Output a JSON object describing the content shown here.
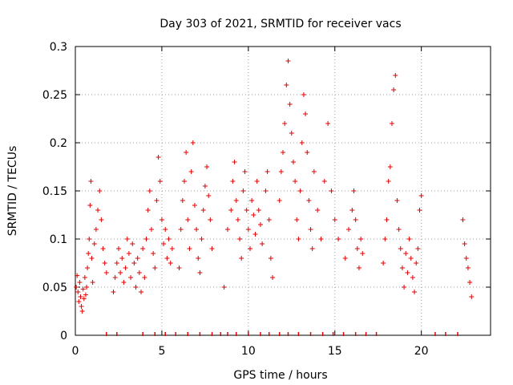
{
  "chart_data": {
    "type": "scatter",
    "title": "Day 303 of 2021, SRMTID for receiver vacs",
    "xlabel": "GPS time / hours",
    "ylabel": "SRMTID / TECUs",
    "xlim": [
      0,
      24
    ],
    "ylim": [
      0,
      0.3
    ],
    "xticks": [
      0,
      5,
      10,
      15,
      20
    ],
    "xtick_labels": [
      "0",
      "5",
      "10",
      "15",
      "20"
    ],
    "yticks": [
      0,
      0.05,
      0.1,
      0.15,
      0.2,
      0.25,
      0.3
    ],
    "ytick_labels": [
      "0",
      "0.05",
      "0.1",
      "0.15",
      "0.2",
      "0.25",
      "0.3"
    ],
    "grid": true,
    "marker": "+",
    "series": [
      {
        "name": "SRMTID",
        "color": "#e00000",
        "points": [
          [
            0.05,
            0.05
          ],
          [
            0.1,
            0.062
          ],
          [
            0.15,
            0.045
          ],
          [
            0.2,
            0.035
          ],
          [
            0.25,
            0.055
          ],
          [
            0.3,
            0.04
          ],
          [
            0.35,
            0.03
          ],
          [
            0.4,
            0.025
          ],
          [
            0.45,
            0.048
          ],
          [
            0.5,
            0.038
          ],
          [
            0.55,
            0.06
          ],
          [
            0.6,
            0.042
          ],
          [
            0.65,
            0.05
          ],
          [
            0.7,
            0.07
          ],
          [
            0.75,
            0.085
          ],
          [
            0.8,
            0.1
          ],
          [
            0.85,
            0.135
          ],
          [
            0.9,
            0.16
          ],
          [
            0.95,
            0.08
          ],
          [
            1.0,
            0.055
          ],
          [
            1.1,
            0.095
          ],
          [
            1.2,
            0.11
          ],
          [
            1.3,
            0.13
          ],
          [
            1.4,
            0.15
          ],
          [
            1.5,
            0.12
          ],
          [
            1.6,
            0.09
          ],
          [
            1.7,
            0.075
          ],
          [
            1.8,
            0.065
          ],
          [
            2.2,
            0.045
          ],
          [
            2.3,
            0.06
          ],
          [
            2.4,
            0.075
          ],
          [
            2.5,
            0.09
          ],
          [
            2.6,
            0.065
          ],
          [
            2.7,
            0.08
          ],
          [
            2.8,
            0.055
          ],
          [
            2.9,
            0.07
          ],
          [
            3.0,
            0.1
          ],
          [
            3.1,
            0.085
          ],
          [
            3.2,
            0.06
          ],
          [
            3.3,
            0.095
          ],
          [
            3.4,
            0.075
          ],
          [
            3.5,
            0.05
          ],
          [
            3.6,
            0.08
          ],
          [
            3.7,
            0.065
          ],
          [
            3.8,
            0.045
          ],
          [
            3.9,
            0.09
          ],
          [
            4.0,
            0.06
          ],
          [
            4.1,
            0.1
          ],
          [
            4.2,
            0.13
          ],
          [
            4.3,
            0.15
          ],
          [
            4.4,
            0.11
          ],
          [
            4.5,
            0.085
          ],
          [
            4.6,
            0.07
          ],
          [
            4.7,
            0.14
          ],
          [
            4.8,
            0.185
          ],
          [
            4.9,
            0.16
          ],
          [
            5.0,
            0.12
          ],
          [
            5.1,
            0.095
          ],
          [
            5.2,
            0.11
          ],
          [
            5.3,
            0.08
          ],
          [
            5.4,
            0.1
          ],
          [
            5.5,
            0.075
          ],
          [
            5.6,
            0.09
          ],
          [
            6.0,
            0.07
          ],
          [
            6.1,
            0.11
          ],
          [
            6.2,
            0.14
          ],
          [
            6.3,
            0.16
          ],
          [
            6.4,
            0.19
          ],
          [
            6.5,
            0.12
          ],
          [
            6.6,
            0.09
          ],
          [
            6.7,
            0.17
          ],
          [
            6.8,
            0.2
          ],
          [
            6.9,
            0.135
          ],
          [
            7.0,
            0.11
          ],
          [
            7.1,
            0.08
          ],
          [
            7.2,
            0.065
          ],
          [
            7.3,
            0.1
          ],
          [
            7.4,
            0.13
          ],
          [
            7.5,
            0.155
          ],
          [
            7.6,
            0.175
          ],
          [
            7.7,
            0.145
          ],
          [
            7.8,
            0.12
          ],
          [
            7.9,
            0.09
          ],
          [
            8.6,
            0.05
          ],
          [
            8.8,
            0.11
          ],
          [
            9.0,
            0.13
          ],
          [
            9.1,
            0.16
          ],
          [
            9.2,
            0.18
          ],
          [
            9.3,
            0.14
          ],
          [
            9.4,
            0.12
          ],
          [
            9.5,
            0.1
          ],
          [
            9.6,
            0.08
          ],
          [
            9.7,
            0.15
          ],
          [
            9.8,
            0.17
          ],
          [
            9.9,
            0.13
          ],
          [
            10.0,
            0.11
          ],
          [
            10.1,
            0.09
          ],
          [
            10.2,
            0.14
          ],
          [
            10.3,
            0.125
          ],
          [
            10.4,
            0.105
          ],
          [
            10.5,
            0.16
          ],
          [
            10.6,
            0.13
          ],
          [
            10.7,
            0.115
          ],
          [
            10.8,
            0.095
          ],
          [
            11.0,
            0.15
          ],
          [
            11.1,
            0.17
          ],
          [
            11.2,
            0.12
          ],
          [
            11.3,
            0.08
          ],
          [
            11.4,
            0.06
          ],
          [
            11.8,
            0.14
          ],
          [
            11.9,
            0.17
          ],
          [
            12.0,
            0.19
          ],
          [
            12.1,
            0.22
          ],
          [
            12.2,
            0.26
          ],
          [
            12.3,
            0.285
          ],
          [
            12.4,
            0.24
          ],
          [
            12.5,
            0.21
          ],
          [
            12.6,
            0.18
          ],
          [
            12.7,
            0.16
          ],
          [
            12.8,
            0.12
          ],
          [
            12.9,
            0.1
          ],
          [
            13.0,
            0.15
          ],
          [
            13.1,
            0.2
          ],
          [
            13.2,
            0.25
          ],
          [
            13.3,
            0.23
          ],
          [
            13.4,
            0.19
          ],
          [
            13.5,
            0.14
          ],
          [
            13.6,
            0.11
          ],
          [
            13.7,
            0.09
          ],
          [
            13.8,
            0.17
          ],
          [
            14.0,
            0.13
          ],
          [
            14.2,
            0.1
          ],
          [
            14.4,
            0.16
          ],
          [
            14.6,
            0.22
          ],
          [
            14.8,
            0.15
          ],
          [
            15.0,
            0.12
          ],
          [
            15.2,
            0.1
          ],
          [
            15.6,
            0.08
          ],
          [
            15.8,
            0.11
          ],
          [
            16.0,
            0.13
          ],
          [
            16.1,
            0.15
          ],
          [
            16.2,
            0.12
          ],
          [
            16.3,
            0.09
          ],
          [
            16.4,
            0.07
          ],
          [
            16.5,
            0.1
          ],
          [
            16.6,
            0.085
          ],
          [
            17.8,
            0.075
          ],
          [
            17.9,
            0.1
          ],
          [
            18.0,
            0.12
          ],
          [
            18.1,
            0.16
          ],
          [
            18.2,
            0.175
          ],
          [
            18.3,
            0.22
          ],
          [
            18.4,
            0.255
          ],
          [
            18.5,
            0.27
          ],
          [
            18.6,
            0.14
          ],
          [
            18.7,
            0.11
          ],
          [
            18.8,
            0.09
          ],
          [
            18.9,
            0.07
          ],
          [
            19.0,
            0.05
          ],
          [
            19.1,
            0.085
          ],
          [
            19.2,
            0.065
          ],
          [
            19.3,
            0.1
          ],
          [
            19.4,
            0.08
          ],
          [
            19.5,
            0.06
          ],
          [
            19.6,
            0.045
          ],
          [
            19.7,
            0.075
          ],
          [
            19.8,
            0.09
          ],
          [
            19.9,
            0.13
          ],
          [
            20.0,
            0.145
          ],
          [
            22.4,
            0.12
          ],
          [
            22.5,
            0.095
          ],
          [
            22.6,
            0.08
          ],
          [
            22.7,
            0.07
          ],
          [
            22.8,
            0.055
          ],
          [
            22.9,
            0.04
          ]
        ]
      },
      {
        "name": "zero markers",
        "color": "#e00000",
        "points": [
          [
            1.8,
            0
          ],
          [
            2.4,
            0
          ],
          [
            3.9,
            0
          ],
          [
            4.6,
            0
          ],
          [
            5.2,
            0
          ],
          [
            5.8,
            0
          ],
          [
            6.5,
            0
          ],
          [
            7.2,
            0
          ],
          [
            7.9,
            0
          ],
          [
            8.4,
            0
          ],
          [
            8.8,
            0
          ],
          [
            9.3,
            0
          ],
          [
            10.0,
            0
          ],
          [
            10.7,
            0
          ],
          [
            11.2,
            0
          ],
          [
            11.8,
            0
          ],
          [
            12.3,
            0
          ],
          [
            12.9,
            0
          ],
          [
            13.6,
            0
          ],
          [
            14.3,
            0
          ],
          [
            14.9,
            0
          ],
          [
            15.5,
            0
          ],
          [
            16.2,
            0
          ],
          [
            16.8,
            0
          ],
          [
            17.4,
            0
          ],
          [
            20.8,
            0
          ],
          [
            21.4,
            0
          ],
          [
            22.1,
            0
          ]
        ]
      }
    ]
  }
}
